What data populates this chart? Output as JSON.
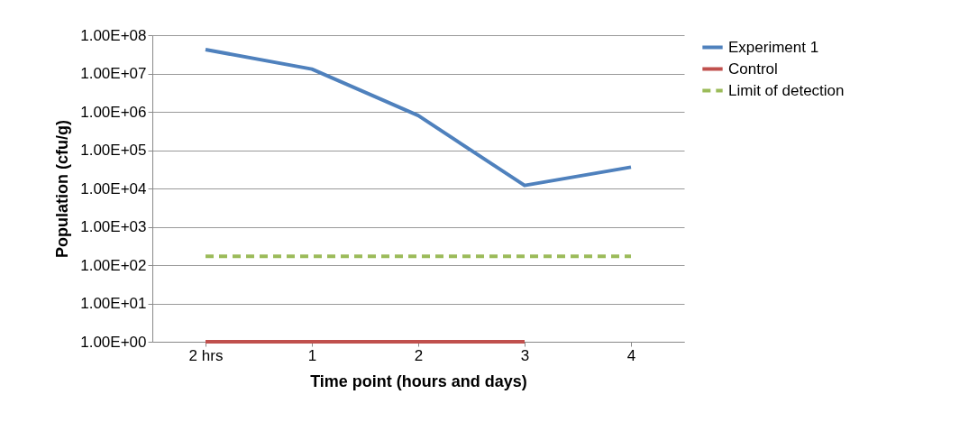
{
  "chart_data": {
    "type": "line",
    "xlabel": "Time  point (hours and days)",
    "ylabel": "Population (cfu/g)",
    "categories": [
      "2 hrs",
      "1",
      "2",
      "3",
      "4"
    ],
    "series": [
      {
        "name": "Experiment 1",
        "color": "#4f81bd",
        "line_style": "solid",
        "values": [
          42000000,
          13000000,
          800000,
          12000,
          36000
        ]
      },
      {
        "name": "Control",
        "color": "#c0504d",
        "line_style": "solid",
        "values": [
          1,
          1,
          1,
          1,
          null
        ]
      },
      {
        "name": "Limit of detection",
        "color": "#9bbb59",
        "line_style": "dashed",
        "values": [
          170,
          170,
          170,
          170,
          170
        ]
      }
    ],
    "log": "y",
    "ylim": [
      1,
      100000000
    ],
    "yticks": [
      {
        "value": 1,
        "label": "1.00E+00"
      },
      {
        "value": 10,
        "label": "1.00E+01"
      },
      {
        "value": 100,
        "label": "1.00E+02"
      },
      {
        "value": 1000,
        "label": "1.00E+03"
      },
      {
        "value": 10000,
        "label": "1.00E+04"
      },
      {
        "value": 100000,
        "label": "1.00E+05"
      },
      {
        "value": 1000000,
        "label": "1.00E+06"
      },
      {
        "value": 10000000,
        "label": "1.00E+07"
      },
      {
        "value": 100000000,
        "label": "1.00E+08"
      }
    ],
    "grid": "y",
    "legend": "right",
    "marker": "none"
  }
}
